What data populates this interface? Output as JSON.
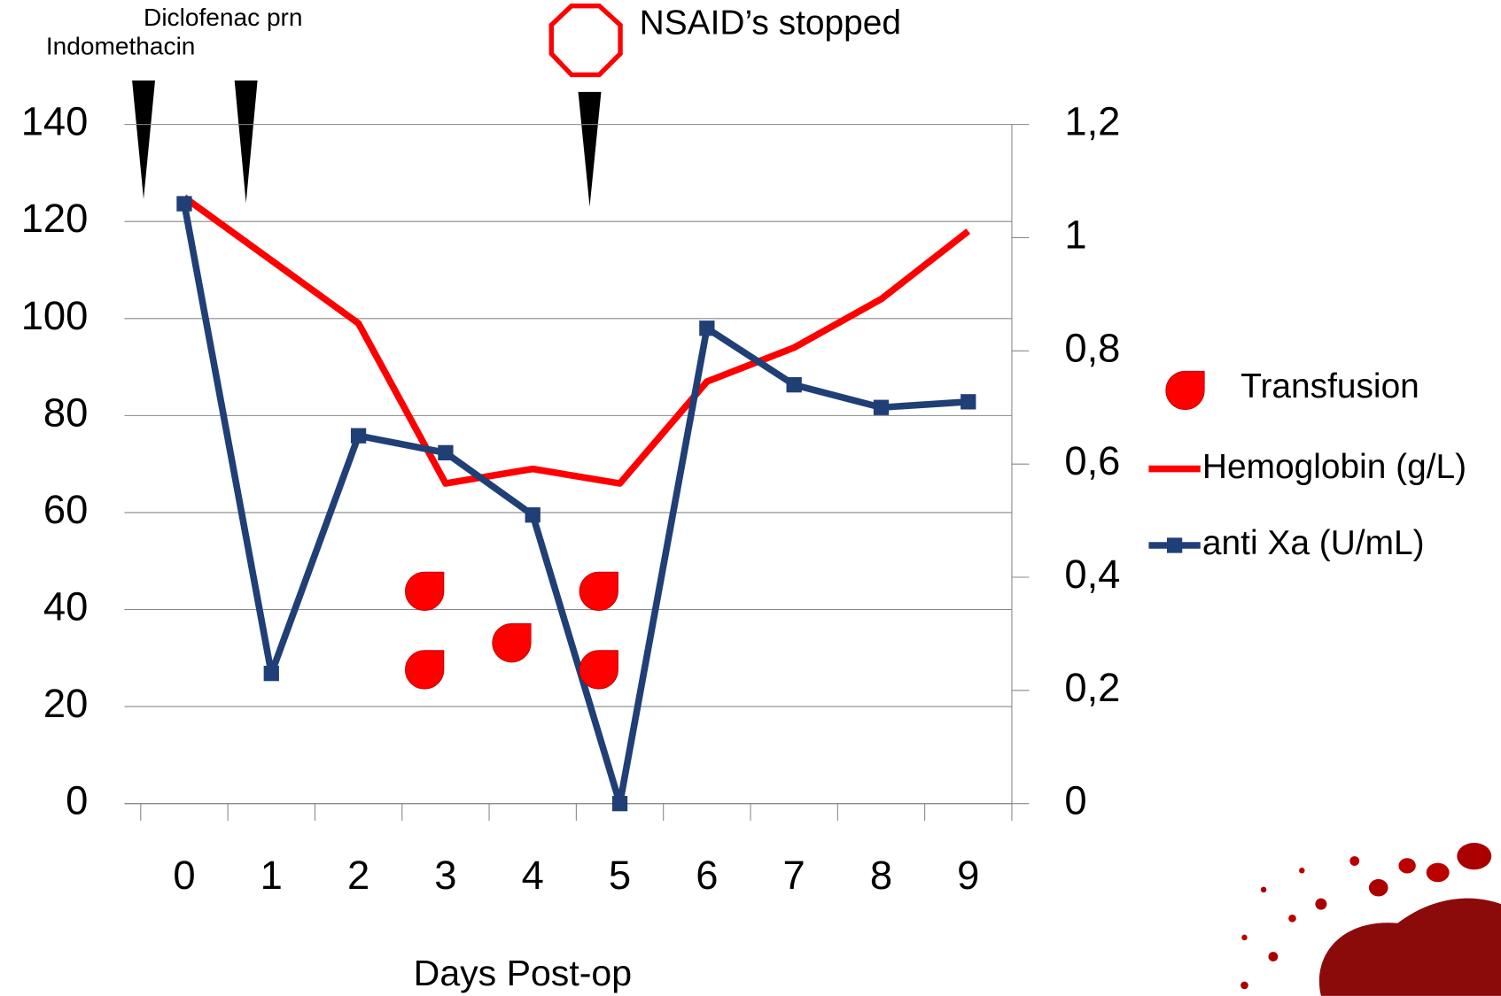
{
  "chart_data": {
    "type": "line",
    "annotations": [
      "Diclofenac prn",
      "Indomethacin",
      "NSAID’s stopped"
    ],
    "x_label": "Days Post-op",
    "categories": [
      "0",
      "1",
      "2",
      "3",
      "4",
      "5",
      "6",
      "7",
      "8",
      "9"
    ],
    "series": [
      {
        "name": "Hemoglobin (g/L)",
        "color": "#ff0000",
        "values": [
          125,
          112,
          99,
          66,
          69,
          66,
          87,
          94,
          104,
          118
        ]
      },
      {
        "name": "anti Xa (U/mL)",
        "color": "#1f3f76",
        "axis": "y2",
        "values": [
          1.06,
          0.23,
          0.65,
          0.62,
          0.51,
          0,
          0.84,
          0.74,
          0.7,
          0.71
        ]
      }
    ],
    "transfusions": {
      "name": "Transfusion",
      "color": "#ff0000",
      "x": [
        3,
        3,
        4,
        5,
        5
      ]
    },
    "ylim": [
      0,
      140
    ],
    "yticks": [
      0,
      20,
      40,
      60,
      80,
      100,
      120,
      140
    ],
    "y2lim": [
      0,
      1.2
    ],
    "y2ticks": [
      0,
      {
        "value": 0.2,
        "label": "0,2"
      },
      {
        "value": 0.4,
        "label": "0,4"
      },
      {
        "value": 0.6,
        "label": "0,6"
      },
      {
        "value": 0.8,
        "label": "0,8"
      },
      1,
      {
        "value": 1.2,
        "label": "1,2"
      }
    ],
    "grid": true
  }
}
